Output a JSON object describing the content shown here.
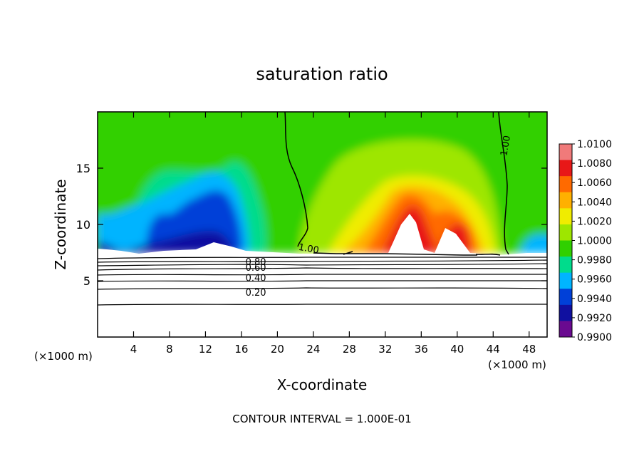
{
  "chart_data": {
    "type": "heatmap",
    "title": "saturation ratio",
    "xlabel": "X-coordinate",
    "ylabel": "Z-coordinate",
    "x_unit_left": "(×1000 m)",
    "x_unit_right": "(×1000 m)",
    "footer": "CONTOUR INTERVAL = 1.000E-01",
    "xlim": [
      0,
      50
    ],
    "ylim": [
      0,
      20
    ],
    "x_ticks": [
      "4",
      "8",
      "12",
      "16",
      "20",
      "24",
      "28",
      "32",
      "36",
      "40",
      "44",
      "48"
    ],
    "x_tick_values": [
      4,
      8,
      12,
      16,
      20,
      24,
      28,
      32,
      36,
      40,
      44,
      48
    ],
    "y_ticks": [
      "5",
      "10",
      "15"
    ],
    "y_tick_values": [
      5,
      10,
      15
    ],
    "colorbar": {
      "labels": [
        "1.0100",
        "1.0080",
        "1.0060",
        "1.0040",
        "1.0020",
        "1.0000",
        "0.9980",
        "0.9960",
        "0.9940",
        "0.9920",
        "0.9900"
      ],
      "values": [
        1.01,
        1.008,
        1.006,
        1.004,
        1.002,
        1.0,
        0.998,
        0.996,
        0.994,
        0.992,
        0.99
      ],
      "colors": [
        "#f07a7a",
        "#e81818",
        "#ff6a00",
        "#ffb000",
        "#f0ec00",
        "#9ee600",
        "#30d000",
        "#00dc8c",
        "#00b4ff",
        "#0040d8",
        "#1010a0",
        "#6a0a90"
      ]
    },
    "contour_labels": [
      {
        "text": "1.00",
        "x": 23.5,
        "z": 7.9
      },
      {
        "text": "1.00",
        "x": 45.3,
        "z": 17.0
      },
      {
        "text": "0.80",
        "x": 17.6,
        "z": 6.7
      },
      {
        "text": "0.60",
        "x": 17.6,
        "z": 6.2
      },
      {
        "text": "0.40",
        "x": 17.6,
        "z": 5.3
      },
      {
        "text": "0.20",
        "x": 17.6,
        "z": 4.0
      }
    ]
  }
}
